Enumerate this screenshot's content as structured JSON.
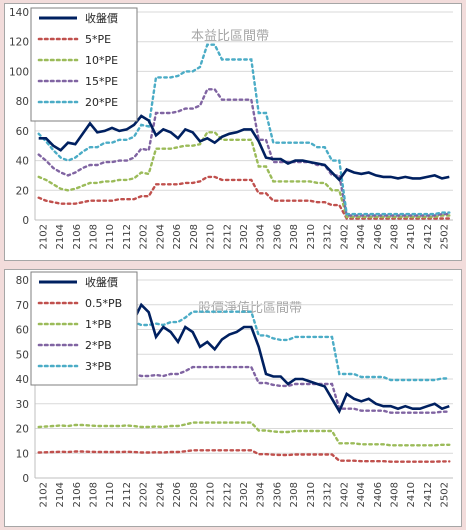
{
  "colors": {
    "close": "#002060",
    "pe5": "#c0504d",
    "pe10": "#9bbb59",
    "pe15": "#8064a2",
    "pe20": "#4bacc6",
    "pb05": "#c0504d",
    "pb1": "#9bbb59",
    "pb2": "#8064a2",
    "pb3": "#4bacc6",
    "grid": "#d9d9d9",
    "axis_text": "#404040",
    "title_text": "#a6a6a6"
  },
  "chart_data": [
    {
      "type": "line",
      "title": "本益比區間帶",
      "ylim": [
        0,
        140
      ],
      "yticks": [
        0,
        20,
        40,
        60,
        80,
        100,
        120,
        140
      ],
      "xticks": [
        "2102",
        "2104",
        "2106",
        "2108",
        "2110",
        "2112",
        "2202",
        "2204",
        "2206",
        "2208",
        "2210",
        "2212",
        "2302",
        "2304",
        "2306",
        "2308",
        "2310",
        "2312",
        "2402",
        "2404",
        "2406",
        "2408",
        "2410",
        "2412",
        "2502"
      ],
      "grid": "horizontal",
      "legend_position": "top-left",
      "series": [
        {
          "name": "收盤價",
          "key": "close",
          "values": [
            55,
            55,
            50,
            47,
            52,
            51,
            58,
            65,
            59,
            60,
            62,
            60,
            61,
            64,
            70,
            67,
            57,
            61,
            59,
            55,
            61,
            59,
            53,
            55,
            52,
            56,
            58,
            59,
            61,
            61,
            53,
            42,
            41,
            41,
            38,
            40,
            40,
            39,
            38,
            37,
            32,
            27,
            34,
            32,
            31,
            32,
            30,
            29,
            29,
            28,
            29,
            28,
            28,
            29,
            30,
            28,
            29
          ]
        },
        {
          "name": "5*PE",
          "key": "pe5",
          "values": [
            15,
            13,
            12,
            11,
            11,
            11,
            12,
            13,
            13,
            13,
            13,
            14,
            14,
            14,
            16,
            16,
            24,
            24,
            24,
            24,
            25,
            25,
            26,
            29,
            29,
            27,
            27,
            27,
            27,
            27,
            18,
            18,
            13,
            13,
            13,
            13,
            13,
            13,
            12,
            12,
            10,
            10,
            1,
            1,
            1,
            1,
            1,
            1,
            1,
            1,
            1,
            1,
            1,
            1,
            1,
            1,
            1
          ]
        },
        {
          "name": "10*PE",
          "key": "pe10",
          "values": [
            29,
            27,
            24,
            21,
            20,
            21,
            23,
            25,
            25,
            26,
            26,
            27,
            27,
            28,
            32,
            31,
            48,
            48,
            48,
            49,
            50,
            50,
            51,
            59,
            59,
            54,
            54,
            54,
            54,
            54,
            36,
            36,
            26,
            26,
            26,
            26,
            26,
            26,
            25,
            25,
            20,
            20,
            2,
            2,
            2,
            2,
            2,
            2,
            2,
            2,
            2,
            2,
            2,
            2,
            2,
            3,
            3
          ]
        },
        {
          "name": "15*PE",
          "key": "pe15",
          "values": [
            44,
            40,
            35,
            32,
            30,
            32,
            35,
            37,
            37,
            39,
            39,
            40,
            40,
            42,
            48,
            47,
            72,
            72,
            72,
            73,
            75,
            75,
            77,
            88,
            88,
            81,
            81,
            81,
            81,
            81,
            54,
            54,
            39,
            39,
            39,
            39,
            39,
            39,
            37,
            37,
            30,
            30,
            3,
            3,
            3,
            3,
            3,
            3,
            3,
            3,
            3,
            3,
            3,
            3,
            3,
            4,
            4
          ]
        },
        {
          "name": "20*PE",
          "key": "pe20",
          "values": [
            58,
            53,
            47,
            42,
            40,
            42,
            46,
            49,
            49,
            52,
            52,
            54,
            54,
            56,
            64,
            63,
            96,
            96,
            96,
            97,
            100,
            100,
            103,
            118,
            118,
            108,
            108,
            108,
            108,
            108,
            72,
            72,
            52,
            52,
            52,
            52,
            52,
            52,
            49,
            49,
            40,
            40,
            4,
            4,
            4,
            4,
            4,
            4,
            4,
            4,
            4,
            4,
            4,
            4,
            4,
            5,
            5
          ]
        }
      ]
    },
    {
      "type": "line",
      "title": "股價淨值比區間帶",
      "ylim": [
        0,
        80
      ],
      "yticks": [
        0,
        10,
        20,
        30,
        40,
        50,
        60,
        70,
        80
      ],
      "xticks": [
        "2102",
        "2104",
        "2106",
        "2108",
        "2110",
        "2112",
        "2202",
        "2204",
        "2206",
        "2208",
        "2210",
        "2212",
        "2302",
        "2304",
        "2306",
        "2308",
        "2310",
        "2312",
        "2402",
        "2404",
        "2406",
        "2408",
        "2410",
        "2412",
        "2502"
      ],
      "grid": "horizontal",
      "legend_position": "top-left",
      "series": [
        {
          "name": "收盤價",
          "key": "close",
          "values": [
            55,
            55,
            50,
            47,
            52,
            51,
            58,
            65,
            59,
            60,
            62,
            60,
            61,
            64,
            70,
            67,
            57,
            61,
            59,
            55,
            61,
            59,
            53,
            55,
            52,
            56,
            58,
            59,
            61,
            61,
            53,
            42,
            41,
            41,
            38,
            40,
            40,
            39,
            38,
            37,
            32,
            27,
            34,
            32,
            31,
            32,
            30,
            29,
            29,
            28,
            29,
            28,
            28,
            29,
            30,
            28,
            29
          ]
        },
        {
          "name": "0.5*PB",
          "key": "pb05",
          "values": [
            10.3,
            10.4,
            10.5,
            10.6,
            10.5,
            10.7,
            10.7,
            10.6,
            10.5,
            10.5,
            10.5,
            10.5,
            10.6,
            10.5,
            10.3,
            10.3,
            10.4,
            10.3,
            10.5,
            10.5,
            10.8,
            11.2,
            11.2,
            11.2,
            11.2,
            11.2,
            11.2,
            11.2,
            11.2,
            11.2,
            9.6,
            9.6,
            9.4,
            9.3,
            9.3,
            9.5,
            9.5,
            9.5,
            9.5,
            9.5,
            9.5,
            7,
            7,
            7,
            6.8,
            6.8,
            6.8,
            6.8,
            6.6,
            6.6,
            6.6,
            6.6,
            6.6,
            6.6,
            6.6,
            6.7,
            6.7
          ]
        },
        {
          "name": "1*PB",
          "key": "pb1",
          "values": [
            20.6,
            20.8,
            21,
            21.2,
            21,
            21.4,
            21.4,
            21.2,
            21,
            21,
            21,
            21,
            21.2,
            21,
            20.6,
            20.6,
            20.8,
            20.6,
            21,
            21,
            21.6,
            22.4,
            22.4,
            22.4,
            22.4,
            22.4,
            22.4,
            22.4,
            22.4,
            22.4,
            19.2,
            19.2,
            18.8,
            18.6,
            18.6,
            19,
            19,
            19,
            19,
            19,
            19,
            14,
            14,
            14,
            13.6,
            13.6,
            13.6,
            13.6,
            13.2,
            13.2,
            13.2,
            13.2,
            13.2,
            13.2,
            13.2,
            13.4,
            13.4
          ]
        },
        {
          "name": "2*PB",
          "key": "pb2",
          "values": [
            41.2,
            41.6,
            42,
            42.4,
            42,
            42.8,
            42.8,
            42.4,
            42,
            42,
            42,
            42,
            42.4,
            42,
            41.2,
            41.2,
            41.6,
            41.2,
            42,
            42,
            43.2,
            44.8,
            44.8,
            44.8,
            44.8,
            44.8,
            44.8,
            44.8,
            44.8,
            44.8,
            38.4,
            38.4,
            37.6,
            37.2,
            37.2,
            38,
            38,
            38,
            38,
            38,
            38,
            28,
            28,
            28,
            27.2,
            27.2,
            27.2,
            27.2,
            26.4,
            26.4,
            26.4,
            26.4,
            26.4,
            26.4,
            26.4,
            26.8,
            26.8
          ]
        },
        {
          "name": "3*PB",
          "key": "pb3",
          "values": [
            61.8,
            62.4,
            63,
            63.6,
            63,
            64.2,
            64.2,
            63.6,
            63,
            63,
            63,
            63,
            63.6,
            63,
            61.8,
            61.8,
            62.4,
            61.8,
            63,
            63,
            64.8,
            67.2,
            67.2,
            67.2,
            67.2,
            67.2,
            67.2,
            67.2,
            67.2,
            67.2,
            57.6,
            57.6,
            56.4,
            55.8,
            55.8,
            57,
            57,
            57,
            57,
            57,
            57,
            42,
            42,
            42,
            40.8,
            40.8,
            40.8,
            40.8,
            39.6,
            39.6,
            39.6,
            39.6,
            39.6,
            39.6,
            39.6,
            40.2,
            40.2
          ]
        }
      ]
    }
  ]
}
